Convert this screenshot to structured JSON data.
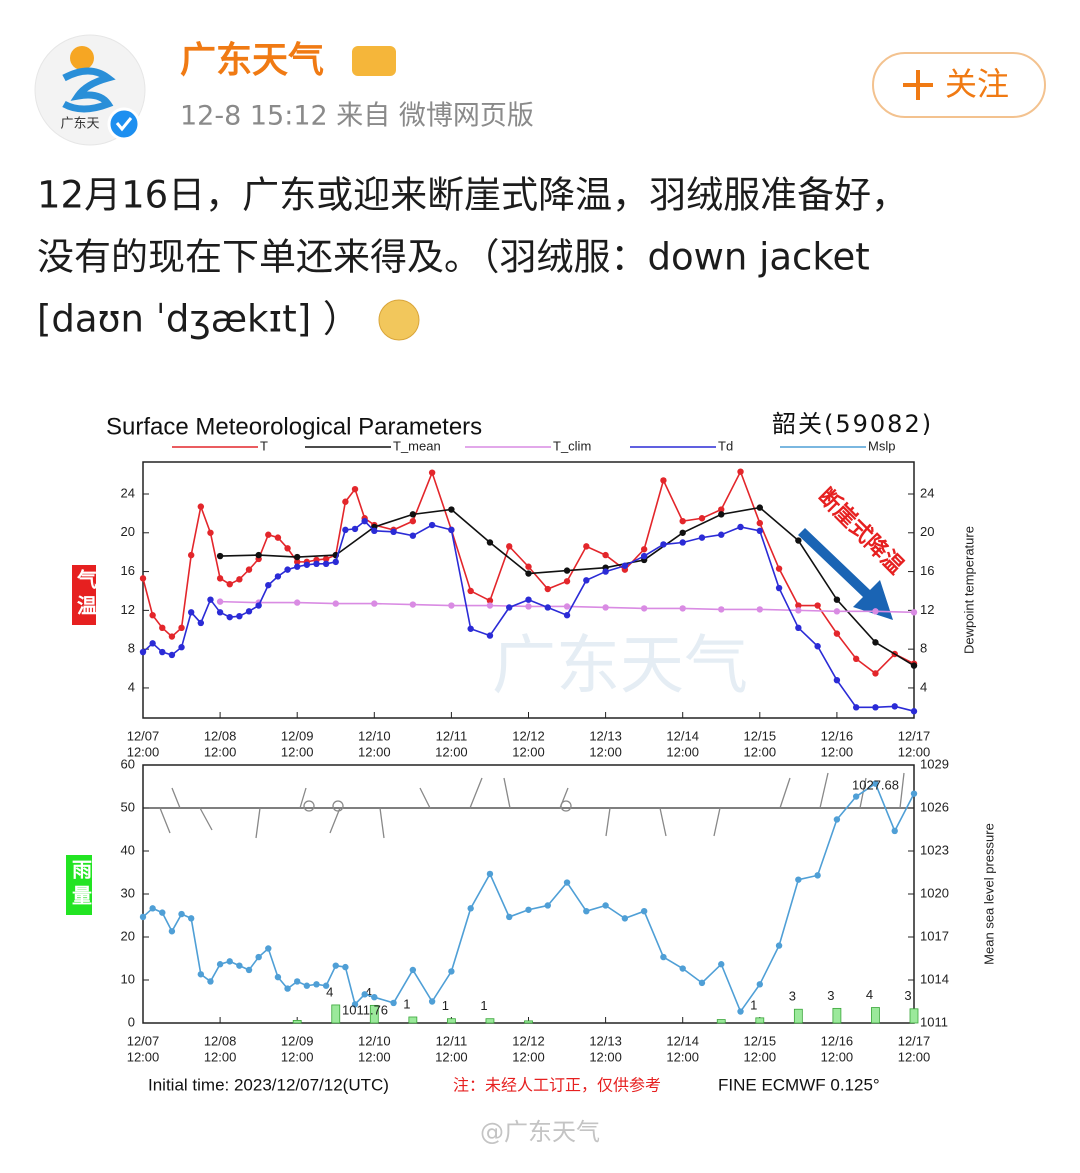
{
  "header": {
    "name": "广东天气",
    "time": "12-8 15:12 来自 微博网页版",
    "follow": "关注",
    "avatar_text": "广东天"
  },
  "post": {
    "lines": [
      "12月16日，广东或迎来断崖式降温，羽绒服准备好，",
      "没有的现在下单还来得及。（羽绒服：down jacket",
      "[daʊn ˈdʒækɪt] ）"
    ]
  },
  "image": {
    "title": "Surface Meteorological Parameters",
    "station": "韶关(59082)",
    "annotation": "断崖式降温",
    "watermark": "广东天气",
    "initial_time": "Initial time: 2023/12/07/12(UTC)",
    "note": "注：未经人工订正，仅供参考",
    "model": "FINE ECMWF 0.125°"
  },
  "footer": {
    "watermark": "@广东天气"
  },
  "chart_data": [
    {
      "type": "line",
      "ylabel": "气温",
      "y2label": "Dewpoint temperature",
      "xlim": [
        0,
        240
      ],
      "xticks": [
        {
          "value": 0,
          "label": "12/07"
        },
        {
          "value": 24,
          "label": "12/08"
        },
        {
          "value": 48,
          "label": "12/09"
        },
        {
          "value": 72,
          "label": "12/10"
        },
        {
          "value": 96,
          "label": "12/11"
        },
        {
          "value": 120,
          "label": "12/12"
        },
        {
          "value": 144,
          "label": "12/13"
        },
        {
          "value": 168,
          "label": "12/14"
        },
        {
          "value": 192,
          "label": "12/15"
        },
        {
          "value": 216,
          "label": "12/16"
        },
        {
          "value": 240,
          "label": "12/17"
        }
      ],
      "xtick_sublabel": "12:00",
      "ylim": [
        0.9,
        27.3
      ],
      "yticks": [
        4,
        8,
        12,
        16,
        20,
        24
      ],
      "y2lim": [
        0.9,
        27.3
      ],
      "y2ticks": [
        4,
        8,
        12,
        16,
        20,
        24
      ],
      "series": [
        {
          "name": "T",
          "color": "#e3262b",
          "x": [
            0,
            3,
            6,
            9,
            12,
            15,
            18,
            21,
            24,
            27,
            30,
            33,
            36,
            39,
            42,
            45,
            48,
            51,
            54,
            57,
            60,
            63,
            66,
            69,
            72,
            78,
            84,
            90,
            96,
            102,
            108,
            114,
            120,
            126,
            132,
            138,
            144,
            150,
            156,
            162,
            168,
            174,
            180,
            186,
            192,
            198,
            204,
            210,
            216,
            222,
            228,
            234,
            240
          ],
          "values": [
            15.3,
            11.5,
            10.2,
            9.3,
            10.2,
            17.7,
            22.7,
            20.0,
            15.3,
            14.7,
            15.2,
            16.2,
            17.3,
            19.8,
            19.5,
            18.4,
            17.0,
            17.0,
            17.2,
            17.3,
            17.7,
            23.2,
            24.5,
            21.5,
            20.8,
            20.3,
            21.2,
            26.2,
            20.3,
            14.0,
            13.0,
            18.6,
            16.5,
            14.2,
            15.0,
            18.6,
            17.7,
            16.2,
            18.3,
            25.4,
            21.2,
            21.5,
            22.4,
            26.3,
            21.0,
            16.3,
            12.5,
            12.5,
            9.6,
            7.0,
            5.5,
            7.5,
            6.5
          ]
        },
        {
          "name": "T_mean",
          "color": "#111111",
          "x": [
            24,
            36,
            48,
            60,
            72,
            84,
            96,
            108,
            120,
            132,
            144,
            156,
            168,
            180,
            192,
            204,
            216,
            228,
            240
          ],
          "values": [
            17.6,
            17.7,
            17.5,
            17.7,
            20.6,
            21.9,
            22.4,
            19.0,
            15.8,
            16.1,
            16.4,
            17.2,
            20.0,
            21.9,
            22.6,
            19.2,
            13.1,
            8.7,
            6.3
          ]
        },
        {
          "name": "T_clim",
          "color": "#d98be3",
          "x": [
            24,
            36,
            48,
            60,
            72,
            84,
            96,
            108,
            120,
            132,
            144,
            156,
            168,
            180,
            192,
            204,
            216,
            228,
            240
          ],
          "values": [
            12.9,
            12.8,
            12.8,
            12.7,
            12.7,
            12.6,
            12.5,
            12.5,
            12.4,
            12.4,
            12.3,
            12.2,
            12.2,
            12.1,
            12.1,
            12.0,
            11.9,
            11.9,
            11.8
          ]
        },
        {
          "name": "Td",
          "color": "#2b2bd6",
          "x": [
            0,
            3,
            6,
            9,
            12,
            15,
            18,
            21,
            24,
            27,
            30,
            33,
            36,
            39,
            42,
            45,
            48,
            51,
            54,
            57,
            60,
            63,
            66,
            69,
            72,
            78,
            84,
            90,
            96,
            102,
            108,
            114,
            120,
            126,
            132,
            138,
            144,
            150,
            156,
            162,
            168,
            174,
            180,
            186,
            192,
            198,
            204,
            210,
            216,
            222,
            228,
            234,
            240
          ],
          "values": [
            7.7,
            8.6,
            7.7,
            7.4,
            8.2,
            11.8,
            10.7,
            13.1,
            11.8,
            11.3,
            11.4,
            11.9,
            12.5,
            14.6,
            15.5,
            16.2,
            16.5,
            16.7,
            16.8,
            16.8,
            17.0,
            20.3,
            20.4,
            21.2,
            20.2,
            20.1,
            19.7,
            20.8,
            20.3,
            10.1,
            9.4,
            12.3,
            13.1,
            12.3,
            11.5,
            15.1,
            16.0,
            16.6,
            17.6,
            18.8,
            19.0,
            19.5,
            19.8,
            20.6,
            20.2,
            14.3,
            10.2,
            8.3,
            4.8,
            2.0,
            2.0,
            2.1,
            1.6
          ]
        }
      ]
    },
    {
      "type": "combo",
      "ylabel": "雨量",
      "y2label": "Mean sea level pressure",
      "xlim": [
        0,
        240
      ],
      "xticks": [
        {
          "value": 0,
          "label": "12/07"
        },
        {
          "value": 24,
          "label": "12/08"
        },
        {
          "value": 48,
          "label": "12/09"
        },
        {
          "value": 72,
          "label": "12/10"
        },
        {
          "value": 96,
          "label": "12/11"
        },
        {
          "value": 120,
          "label": "12/12"
        },
        {
          "value": 144,
          "label": "12/13"
        },
        {
          "value": 168,
          "label": "12/14"
        },
        {
          "value": 192,
          "label": "12/15"
        },
        {
          "value": 216,
          "label": "12/16"
        },
        {
          "value": 240,
          "label": "12/17"
        }
      ],
      "xtick_sublabel": "12:00",
      "ylim": [
        0,
        60
      ],
      "yticks": [
        0,
        10,
        20,
        30,
        40,
        50,
        60
      ],
      "y2lim": [
        1011,
        1029
      ],
      "y2ticks": [
        1011,
        1014,
        1017,
        1020,
        1023,
        1026,
        1029
      ],
      "min_label": "1011.76",
      "max_label": "1027.68",
      "bars": {
        "color": "#9be99b",
        "x": [
          48,
          60,
          72,
          84,
          96,
          108,
          120,
          180,
          192,
          204,
          216,
          228,
          240
        ],
        "values": [
          0.6,
          4.2,
          4.1,
          1.4,
          1.0,
          1.0,
          0.5,
          0.8,
          1.2,
          3.2,
          3.4,
          3.6,
          3.3
        ],
        "value_labels": [
          null,
          "4",
          "4",
          "1",
          "1",
          "1",
          null,
          null,
          "1",
          "3",
          "3",
          "4",
          "3"
        ]
      },
      "series": [
        {
          "name": "Mslp",
          "color": "#4f9fd6",
          "axis": "y2",
          "x": [
            0,
            3,
            6,
            9,
            12,
            15,
            18,
            21,
            24,
            27,
            30,
            33,
            36,
            39,
            42,
            45,
            48,
            51,
            54,
            57,
            60,
            63,
            66,
            69,
            72,
            78,
            84,
            90,
            96,
            102,
            108,
            114,
            120,
            126,
            132,
            138,
            144,
            150,
            156,
            162,
            168,
            174,
            180,
            186,
            192,
            198,
            204,
            210,
            216,
            222,
            228,
            234,
            240
          ],
          "values": [
            1018.4,
            1019.0,
            1018.7,
            1017.4,
            1018.6,
            1018.3,
            1014.4,
            1013.9,
            1015.1,
            1015.3,
            1015.0,
            1014.7,
            1015.6,
            1016.2,
            1014.2,
            1013.4,
            1013.9,
            1013.6,
            1013.7,
            1013.6,
            1015.0,
            1014.9,
            1012.3,
            1013.0,
            1012.8,
            1012.4,
            1014.7,
            1012.5,
            1014.6,
            1019.0,
            1021.4,
            1018.4,
            1018.9,
            1019.2,
            1020.8,
            1018.8,
            1019.2,
            1018.3,
            1018.8,
            1015.6,
            1014.8,
            1013.8,
            1015.1,
            1011.8,
            1013.7,
            1016.4,
            1021.0,
            1021.3,
            1025.2,
            1026.8,
            1027.7,
            1024.4,
            1027.0
          ]
        }
      ]
    }
  ]
}
